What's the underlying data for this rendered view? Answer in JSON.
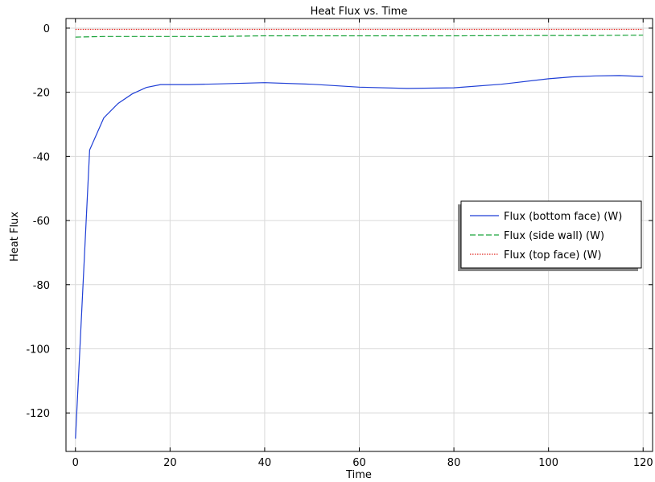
{
  "chart_data": {
    "type": "line",
    "title": "Heat Flux vs. Time",
    "xlabel": "Time",
    "ylabel": "Heat Flux",
    "xlim": [
      -2,
      122
    ],
    "ylim": [
      -132,
      3
    ],
    "xticks": [
      0,
      20,
      40,
      60,
      80,
      100,
      120
    ],
    "yticks": [
      0,
      -20,
      -40,
      -60,
      -80,
      -100,
      -120
    ],
    "grid": true,
    "legend_position": "right",
    "series": [
      {
        "name": "Flux (bottom face) (W)",
        "color": "#1f3fd6",
        "style": "solid",
        "x": [
          0,
          3,
          6,
          9,
          12,
          15,
          18,
          24,
          30,
          40,
          50,
          60,
          70,
          80,
          90,
          100,
          105,
          110,
          115,
          120
        ],
        "y": [
          -128,
          -38,
          -28,
          -23.5,
          -20.5,
          -18.5,
          -17.6,
          -17.6,
          -17.4,
          -17.0,
          -17.5,
          -18.4,
          -18.8,
          -18.6,
          -17.5,
          -15.8,
          -15.2,
          -14.9,
          -14.8,
          -15.1
        ]
      },
      {
        "name": "Flux (side wall) (W)",
        "color": "#1aa33a",
        "style": "dashed",
        "x": [
          0,
          3,
          6,
          10,
          20,
          30,
          40,
          60,
          80,
          100,
          110,
          120
        ],
        "y": [
          -2.8,
          -2.7,
          -2.6,
          -2.6,
          -2.6,
          -2.6,
          -2.4,
          -2.4,
          -2.4,
          -2.3,
          -2.3,
          -2.2
        ]
      },
      {
        "name": "Flux (top face) (W)",
        "color": "#e0261f",
        "style": "dotted",
        "x": [
          0,
          20,
          40,
          60,
          80,
          100,
          120
        ],
        "y": [
          -0.4,
          -0.4,
          -0.4,
          -0.4,
          -0.4,
          -0.4,
          -0.4
        ]
      }
    ]
  }
}
